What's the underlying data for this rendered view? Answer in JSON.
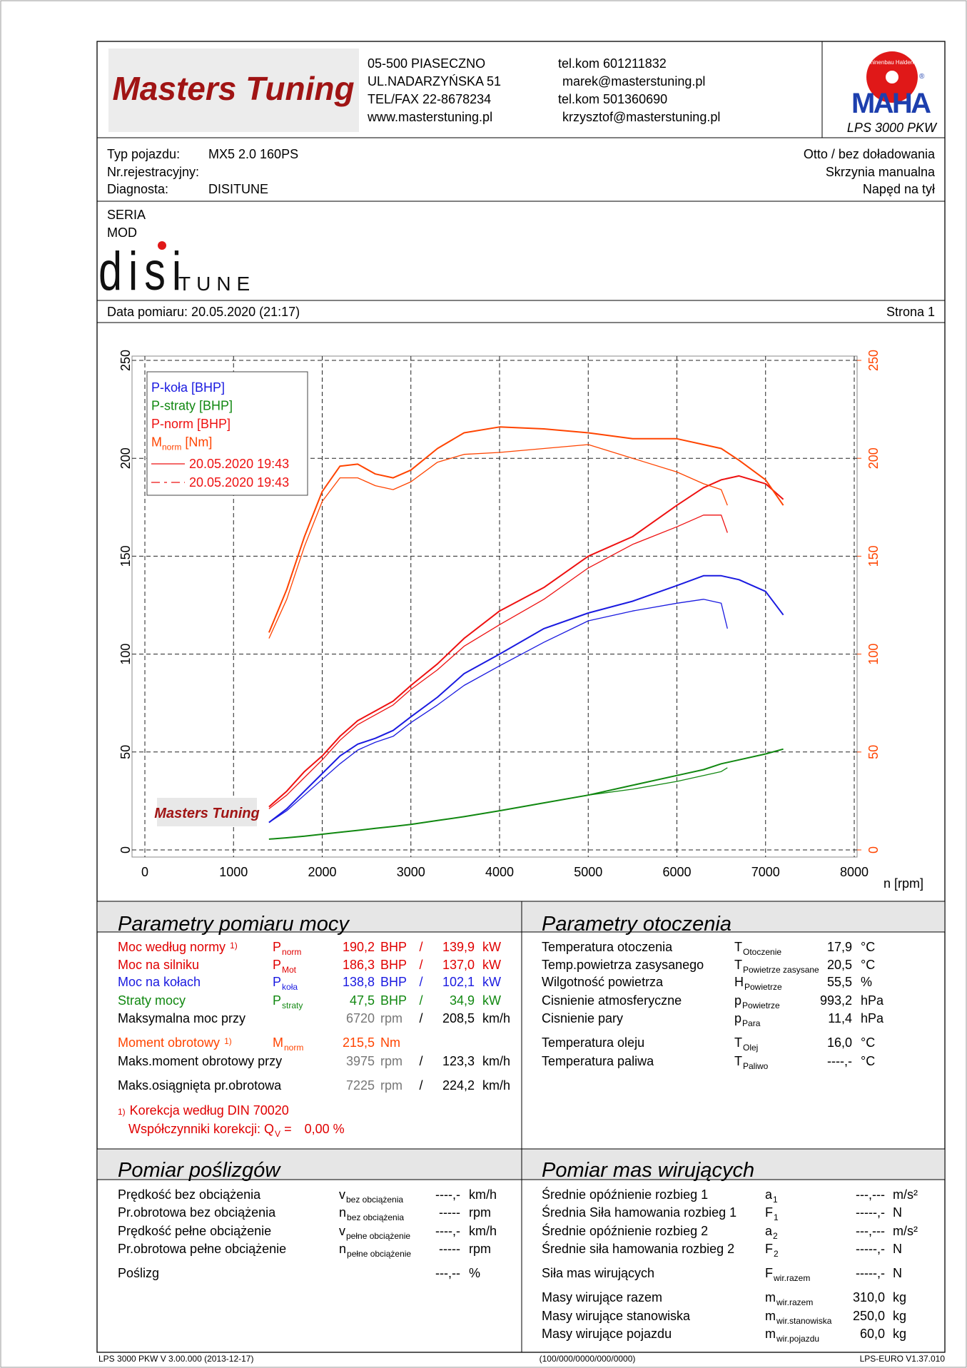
{
  "header": {
    "logo": "Masters Tuning",
    "address": [
      "05-500 PIASECZNO",
      "UL.NADARZYŃSKA 51",
      "TEL/FAX 22-8678234",
      "www.masterstuning.pl"
    ],
    "contacts": [
      "tel.kom 601211832",
      "marek@masterstuning.pl",
      "tel.kom 501360690",
      "krzysztof@masterstuning.pl"
    ],
    "maha": {
      "brand": "MAHA",
      "ring": "Maschinenbau Haldenwang",
      "reg": "®",
      "model": "LPS 3000 PKW"
    }
  },
  "vehicle": {
    "left": [
      {
        "label": "Typ pojazdu:",
        "value": "MX5 2.0 160PS"
      },
      {
        "label": "Nr.rejestracyjny:"
      },
      {
        "label": "Diagnosta:",
        "value": "DISITUNE"
      }
    ],
    "right": [
      "Otto / bez doładowania",
      "Skrzynia manualna",
      "Napęd na tył"
    ]
  },
  "notes": [
    "SERIA",
    "MOD"
  ],
  "brand": {
    "main": "disi",
    "sub": "TUNE"
  },
  "date_row": {
    "date": "Data pomiaru: 20.05.2020 (21:17)",
    "page": "Strona 1"
  },
  "chart_data": {
    "type": "line",
    "xlabel": "n [rpm]",
    "xlim": [
      0,
      8000
    ],
    "xticks": [
      0,
      1000,
      2000,
      3000,
      4000,
      5000,
      6000,
      7000,
      8000
    ],
    "ylim": [
      0,
      250
    ],
    "yticks": [
      0,
      50,
      100,
      150,
      200,
      250
    ],
    "y2lim": [
      0,
      250
    ],
    "y2ticks": [
      0,
      50,
      100,
      150,
      200,
      250
    ],
    "grid": true,
    "legend": "upper left",
    "runs": [
      {
        "label": "20.05.2020 19:43",
        "dash": false,
        "x": [
          1400,
          1600,
          1800,
          2000,
          2200,
          2400,
          2600,
          2800,
          3000,
          3300,
          3600,
          4000,
          4500,
          5000,
          5500,
          6000,
          6300,
          6500,
          6700,
          7000,
          7200
        ]
      },
      {
        "label": "20.05.2020 19:43",
        "dash": true,
        "x": [
          1400,
          1600,
          1800,
          2000,
          2200,
          2400,
          2600,
          2800,
          3000,
          3300,
          3600,
          4000,
          4500,
          5000,
          5500,
          6000,
          6300,
          6500,
          6570
        ]
      }
    ],
    "series": [
      {
        "name": "P-koła [BHP]",
        "color": "#1a1ae0",
        "values": [
          [
            14,
            21,
            30,
            39,
            48,
            54,
            57,
            61,
            68,
            78,
            90,
            100,
            113,
            121,
            127,
            135,
            140,
            140,
            138,
            132,
            120
          ],
          [
            14,
            20,
            28,
            36,
            44,
            51,
            55,
            58,
            65,
            74,
            84,
            94,
            106,
            117,
            122,
            126,
            128,
            126,
            113
          ]
        ]
      },
      {
        "name": "P-straty [BHP]",
        "color": "#118811",
        "values": [
          [
            5.5,
            6.2,
            7,
            8,
            9,
            10,
            11,
            12,
            13,
            15,
            17,
            20,
            24,
            28,
            33,
            38,
            41,
            44,
            46,
            49,
            51.5
          ],
          [
            5.5,
            6.2,
            7,
            8,
            9,
            10,
            11,
            12,
            13,
            15,
            17,
            20,
            24,
            28,
            31,
            35,
            38,
            40,
            42
          ]
        ]
      },
      {
        "name": "P-norm [BHP]",
        "color": "#ee1111",
        "values": [
          [
            22,
            30,
            40,
            48,
            58,
            66,
            71,
            76,
            84,
            95,
            108,
            122,
            134,
            150,
            160,
            176,
            185,
            189,
            191,
            187,
            179
          ],
          [
            21,
            28,
            37,
            46,
            56,
            64,
            69,
            74,
            82,
            92,
            104,
            115,
            128,
            144,
            156,
            165,
            171,
            171,
            162
          ]
        ]
      },
      {
        "name": "M",
        "name_sub": "norm",
        "name_suffix": " [Nm]",
        "color": "#ff4400",
        "values": [
          [
            111,
            133,
            160,
            183,
            196,
            197,
            192,
            190,
            194,
            205,
            213,
            216,
            215,
            213,
            210,
            210,
            207,
            205,
            199,
            189,
            176
          ],
          [
            108,
            128,
            155,
            178,
            190,
            190,
            186,
            184,
            188,
            198,
            202,
            203,
            205,
            207,
            200,
            193,
            187,
            184,
            176
          ]
        ]
      }
    ]
  },
  "power": {
    "title": "Parametry pomiaru mocy",
    "rows": [
      {
        "label": "Moc według normy",
        "note": "1)",
        "sym": "P",
        "sub": "norm",
        "v1": "190,2",
        "u1": "BHP",
        "sep": "/",
        "v2": "139,9",
        "u2": "kW",
        "color": "#e00000"
      },
      {
        "label": "Moc na silniku",
        "sym": "P",
        "sub": "Mot",
        "v1": "186,3",
        "u1": "BHP",
        "sep": "/",
        "v2": "137,0",
        "u2": "kW",
        "color": "#e00000"
      },
      {
        "label": "Moc na kołach",
        "sym": "P",
        "sub": "koła",
        "v1": "138,8",
        "u1": "BHP",
        "sep": "/",
        "v2": "102,1",
        "u2": "kW",
        "color": "#1a1ae0"
      },
      {
        "label": "Straty mocy",
        "sym": "P",
        "sub": "straty",
        "v1": "47,5",
        "u1": "BHP",
        "sep": "/",
        "v2": "34,9",
        "u2": "kW",
        "color": "#118811"
      },
      {
        "label": "Maksymalna moc przy",
        "v1": "6720",
        "u1": "rpm",
        "sep": "/",
        "v2": "208,5",
        "u2": "km/h",
        "color": "#000000"
      },
      {
        "label": "Moment obrotowy",
        "note": "1)",
        "sym": "M",
        "sub": "norm",
        "v1": "215,5",
        "u1": "Nm",
        "color": "#ff4400"
      },
      {
        "label": "Maks.moment obrotowy przy",
        "v1": "3975",
        "u1": "rpm",
        "sep": "/",
        "v2": "123,3",
        "u2": "km/h",
        "color": "#000000"
      },
      {
        "label": "Maks.osiągnięta pr.obrotowa",
        "v1": "7225",
        "u1": "rpm",
        "sep": "/",
        "v2": "224,2",
        "u2": "km/h",
        "color": "#000000"
      }
    ],
    "footnote": {
      "mark": "1)",
      "text": "Korekcja według DIN 70020",
      "coef": "Współczynniki korekcji: Q",
      "coef_sub": "V",
      "coef_eq": " =",
      "coef_value": "0,00 %"
    }
  },
  "ambient": {
    "title": "Parametry otoczenia",
    "rows": [
      {
        "label": "Temperatura otoczenia",
        "sym": "T",
        "sub": "Otoczenie",
        "value": "17,9",
        "unit": "°C"
      },
      {
        "label": "Temp.powietrza zasysanego",
        "sym": "T",
        "sub": "Powietrze zasysane",
        "value": "20,5",
        "unit": "°C"
      },
      {
        "label": "Wilgotność powietrza",
        "sym": "H",
        "sub": "Powietrze",
        "value": "55,5",
        "unit": "%"
      },
      {
        "label": "Cisnienie atmosferyczne",
        "sym": "p",
        "sub": "Powietrze",
        "value": "993,2",
        "unit": "hPa"
      },
      {
        "label": "Cisnienie pary",
        "sym": "p",
        "sub": "Para",
        "value": "11,4",
        "unit": "hPa"
      },
      {
        "label": "Temperatura oleju",
        "sym": "T",
        "sub": "Olej",
        "value": "16,0",
        "unit": "°C"
      },
      {
        "label": "Temperatura paliwa",
        "sym": "T",
        "sub": "Paliwo",
        "value": "----,-",
        "unit": "°C"
      }
    ]
  },
  "slip": {
    "title": "Pomiar poślizgów",
    "rows": [
      {
        "label": "Prędkość bez obciążenia",
        "sym": "v",
        "sub": "bez obciążenia",
        "value": "----,-",
        "unit": "km/h"
      },
      {
        "label": "Pr.obrotowa bez obciążenia",
        "sym": "n",
        "sub": "bez obciążenia",
        "value": "-----",
        "unit": "rpm"
      },
      {
        "label": "Prędkość pełne obciążenie",
        "sym": "v",
        "sub": "pełne obciążenie",
        "value": "----,-",
        "unit": "km/h"
      },
      {
        "label": "Pr.obrotowa pełne obciążenie",
        "sym": "n",
        "sub": "pełne obciążenie",
        "value": "-----",
        "unit": "rpm"
      },
      {
        "label": "Poślizg",
        "value": "---,--",
        "unit": "%"
      }
    ]
  },
  "masses": {
    "title": "Pomiar mas wirujących",
    "rows": [
      {
        "label": "Średnie opóźnienie rozbieg 1",
        "sym": "a",
        "sub": "1",
        "value": "---,---",
        "unit": "m/s²"
      },
      {
        "label": "Średnia Siła hamowania rozbieg 1",
        "sym": "F",
        "sub": "1",
        "value": "-----,-",
        "unit": "N"
      },
      {
        "label": "Średnie opóźnienie rozbieg 2",
        "sym": "a",
        "sub": "2",
        "value": "---,---",
        "unit": "m/s²"
      },
      {
        "label": "Średnie siła hamowania rozbieg 2",
        "sym": "F",
        "sub": "2",
        "value": "-----,-",
        "unit": "N"
      },
      {
        "label": "Siła mas wirujących",
        "sym": "F",
        "sub": "wir.razem",
        "value": "-----,-",
        "unit": "N"
      },
      {
        "label": "Masy wirujące razem",
        "sym": "m",
        "sub": "wir.razem",
        "value": "310,0",
        "unit": "kg"
      },
      {
        "label": "Masy wirujące stanowiska",
        "sym": "m",
        "sub": "wir.stanowiska",
        "value": "250,0",
        "unit": "kg"
      },
      {
        "label": "Masy wirujące pojazdu",
        "sym": "m",
        "sub": "wir.pojazdu",
        "value": "60,0",
        "unit": "kg"
      }
    ]
  },
  "footer": {
    "left": "LPS 3000 PKW V 3.00.000 (2013-12-17)",
    "center": "(100/000/0000/000/0000)",
    "right": "LPS-EURO V1.37.010"
  }
}
